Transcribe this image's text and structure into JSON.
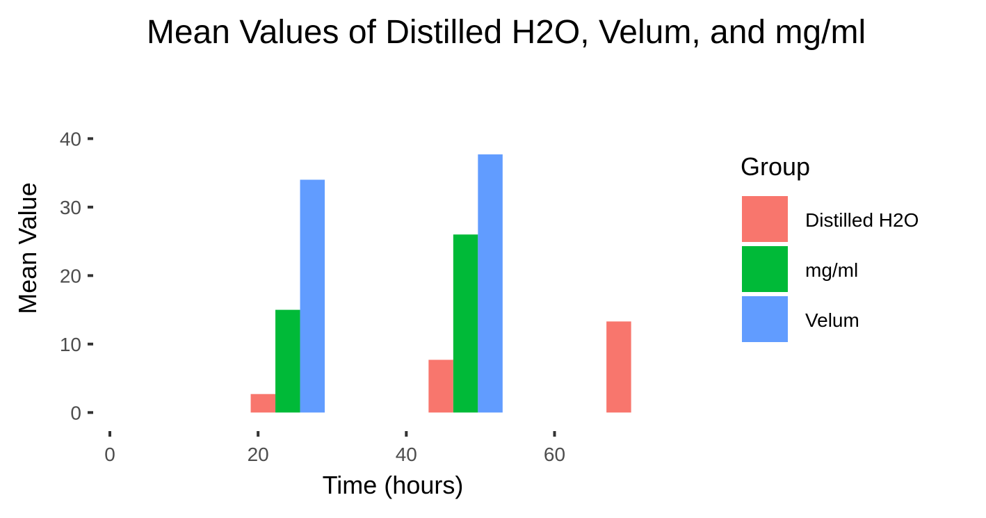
{
  "chart_data": {
    "type": "bar",
    "title": "Mean Values of Distilled H2O, Velum, and mg/ml",
    "xlabel": "Time (hours)",
    "ylabel": "Mean Value",
    "xlim": [
      -1.5,
      79
    ],
    "ylim": [
      -2,
      44
    ],
    "xticks": [
      0,
      20,
      40,
      60
    ],
    "yticks": [
      0,
      10,
      20,
      30,
      40
    ],
    "grid": false,
    "legend_title": "Group",
    "legend_position": "right",
    "bar_width_hours": 3.33,
    "series": [
      {
        "name": "Distilled H2O",
        "color": "#F8766D",
        "x": [
          24,
          48,
          72
        ],
        "values": [
          2.7,
          7.7,
          13.3
        ]
      },
      {
        "name": "mg/ml",
        "color": "#00BA38",
        "x": [
          24,
          48
        ],
        "values": [
          15.0,
          26.0
        ]
      },
      {
        "name": "Velum",
        "color": "#619CFF",
        "x": [
          24,
          48
        ],
        "values": [
          34.0,
          37.7
        ]
      }
    ]
  }
}
